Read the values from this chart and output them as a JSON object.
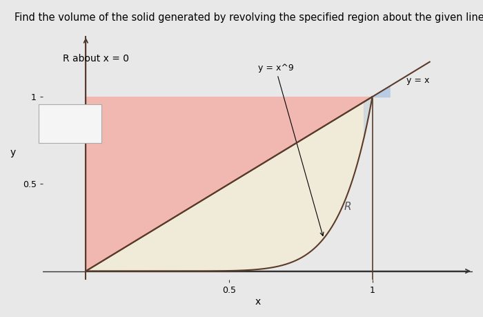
{
  "title": "Find the volume of the solid generated by revolving the specified region about the given line.",
  "subtitle": "R about x = 0",
  "xlabel": "x",
  "ylabel": "y",
  "x_tick_labels": [
    "0.5",
    "1"
  ],
  "y_tick_labels": [
    "0.5",
    "1"
  ],
  "background_color": "#e8e8e8",
  "plot_bg_color": "#e8e8e8",
  "fig_bg_color": "#e8e8e8",
  "pink_color": "#f0b8b0",
  "cream_color": "#f0ead8",
  "blue_color": "#b8cce4",
  "line_color": "#5a3a28",
  "axis_color": "#333333",
  "legend_box_color": "#f5f5f5",
  "legend_box_edge": "#aaaaaa",
  "annotation_y_x9": "y = x^9",
  "annotation_y_x": "y = x",
  "annotation_R": "R",
  "x_min": 0,
  "x_max": 1.35,
  "y_min": -0.05,
  "y_max": 1.35,
  "n_points": 500
}
